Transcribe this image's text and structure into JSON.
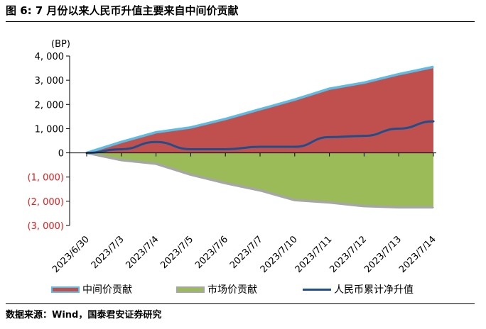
{
  "header": {
    "title": "图 6:  7 月份以来人民币升值主要来自中间价贡献"
  },
  "footer": {
    "source": "数据来源：Wind，国泰君安证券研究"
  },
  "chart_data": {
    "type": "area",
    "unit_label": "(BP)",
    "categories": [
      "2023/6/30",
      "2023/7/3",
      "2023/7/4",
      "2023/7/5",
      "2023/7/6",
      "2023/7/7",
      "2023/7/10",
      "2023/7/11",
      "2023/7/12",
      "2023/7/13",
      "2023/7/14"
    ],
    "ylim": [
      -3000,
      4000
    ],
    "yticks": [
      4000,
      3000,
      2000,
      1000,
      0,
      -1000,
      -2000,
      -3000
    ],
    "ytick_labels": [
      "4, 000",
      "3, 000",
      "2, 000",
      "1, 000",
      "0",
      "(1, 000)",
      "(2, 000)",
      "(3, 000)"
    ],
    "grid": false,
    "legend_position": "bottom",
    "series": [
      {
        "name": "中间价贡献",
        "kind": "area",
        "fill": "#c0504d",
        "edge": "#5bbde6",
        "values": [
          0,
          450,
          850,
          1050,
          1400,
          1800,
          2200,
          2650,
          2900,
          3250,
          3550
        ]
      },
      {
        "name": "市场价贡献",
        "kind": "area",
        "fill": "#9bbb59",
        "edge": "#a6a6a6",
        "values": [
          0,
          -300,
          -450,
          -900,
          -1250,
          -1550,
          -1950,
          -2050,
          -2200,
          -2250,
          -2250
        ]
      },
      {
        "name": "人民币累计净升值",
        "kind": "line",
        "color": "#1f4e8c",
        "values": [
          0,
          150,
          450,
          150,
          150,
          250,
          250,
          650,
          700,
          1000,
          1300
        ]
      }
    ]
  }
}
